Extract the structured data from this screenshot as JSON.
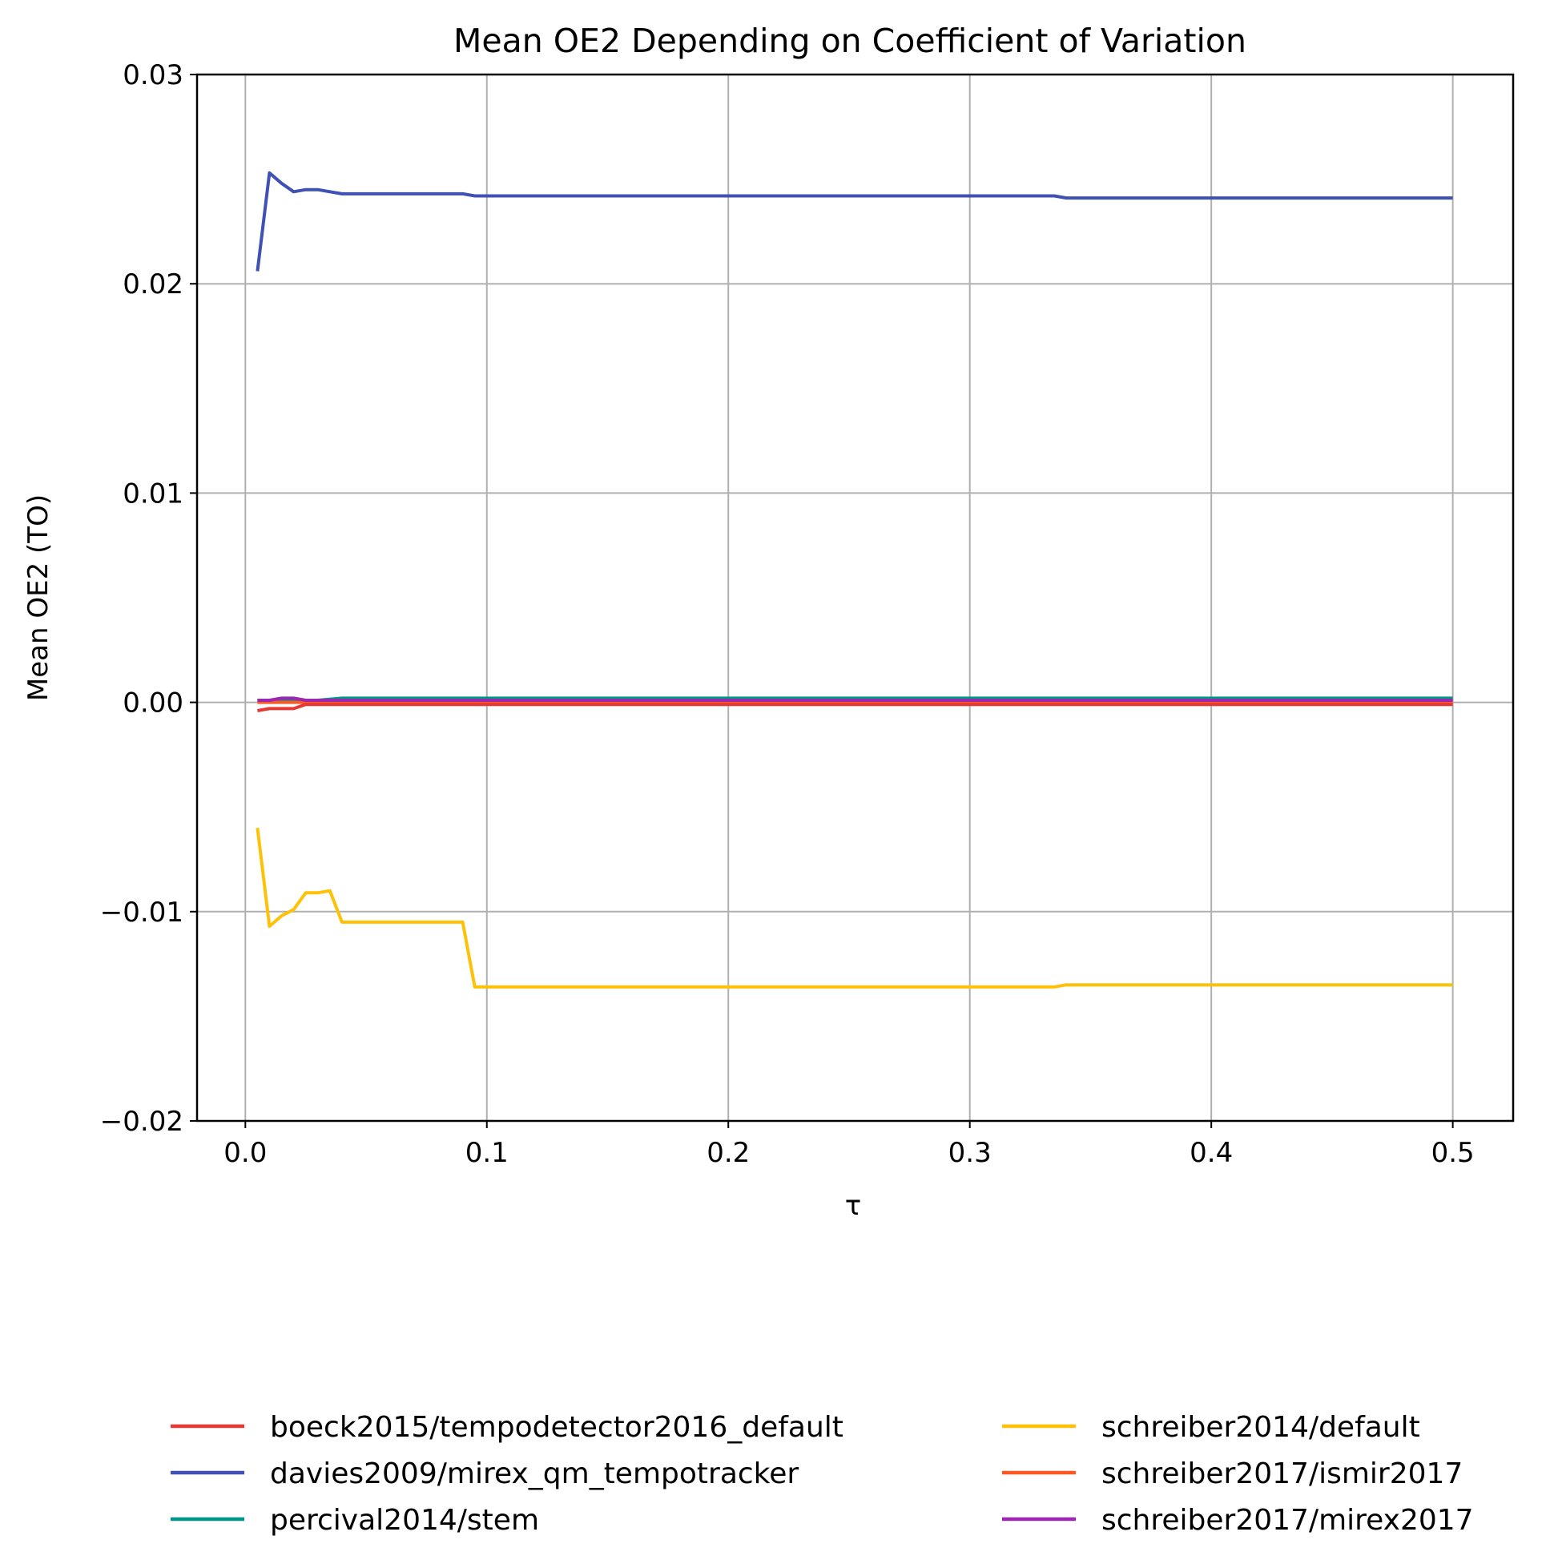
{
  "chart_data": {
    "type": "line",
    "title": "Mean OE2 Depending on Coefficient of Variation",
    "xlabel": "τ",
    "ylabel": "Mean OE2 (TO)",
    "xlim": [
      -0.02,
      0.525
    ],
    "ylim": [
      -0.02,
      0.03
    ],
    "x_ticks": [
      0.0,
      0.1,
      0.2,
      0.3,
      0.4,
      0.5
    ],
    "x_tick_labels": [
      "0.0",
      "0.1",
      "0.2",
      "0.3",
      "0.4",
      "0.5"
    ],
    "y_ticks": [
      -0.02,
      -0.01,
      0.0,
      0.01,
      0.02,
      0.03
    ],
    "y_tick_labels": [
      "−0.02",
      "−0.01",
      "0.00",
      "0.01",
      "0.02",
      "0.03"
    ],
    "grid": true,
    "legend_position": "bottom, below plot, two columns",
    "series": [
      {
        "name": "boeck2015/tempodetector2016_default",
        "color": "#e53935",
        "points": [
          [
            0.005,
            -0.0004
          ],
          [
            0.01,
            -0.0003
          ],
          [
            0.015,
            -0.0003
          ],
          [
            0.02,
            -0.0003
          ],
          [
            0.025,
            -0.0001
          ],
          [
            0.03,
            -0.0001
          ],
          [
            0.04,
            -0.0001
          ],
          [
            0.1,
            -0.0001
          ],
          [
            0.2,
            -0.0001
          ],
          [
            0.3,
            -0.0001
          ],
          [
            0.335,
            -0.0001
          ],
          [
            0.34,
            -0.0001
          ],
          [
            0.5,
            -0.0001
          ]
        ]
      },
      {
        "name": "davies2009/mirex_qm_tempotracker",
        "color": "#3f51b5",
        "points": [
          [
            0.005,
            0.0206
          ],
          [
            0.01,
            0.0253
          ],
          [
            0.015,
            0.0248
          ],
          [
            0.02,
            0.0244
          ],
          [
            0.025,
            0.0245
          ],
          [
            0.03,
            0.0245
          ],
          [
            0.035,
            0.0244
          ],
          [
            0.04,
            0.0243
          ],
          [
            0.09,
            0.0243
          ],
          [
            0.095,
            0.0242
          ],
          [
            0.2,
            0.0242
          ],
          [
            0.3,
            0.0242
          ],
          [
            0.335,
            0.0242
          ],
          [
            0.34,
            0.0241
          ],
          [
            0.5,
            0.0241
          ]
        ]
      },
      {
        "name": "percival2014/stem",
        "color": "#009688",
        "points": [
          [
            0.005,
            0.0001
          ],
          [
            0.01,
            0.0001
          ],
          [
            0.02,
            0.0001
          ],
          [
            0.03,
            0.0001
          ],
          [
            0.04,
            0.0002
          ],
          [
            0.09,
            0.0002
          ],
          [
            0.1,
            0.0002
          ],
          [
            0.2,
            0.0002
          ],
          [
            0.3,
            0.0002
          ],
          [
            0.4,
            0.0002
          ],
          [
            0.5,
            0.0002
          ]
        ]
      },
      {
        "name": "schreiber2014/default",
        "color": "#ffc107",
        "points": [
          [
            0.005,
            -0.006
          ],
          [
            0.01,
            -0.0107
          ],
          [
            0.015,
            -0.0102
          ],
          [
            0.02,
            -0.0099
          ],
          [
            0.025,
            -0.0091
          ],
          [
            0.03,
            -0.0091
          ],
          [
            0.035,
            -0.009
          ],
          [
            0.04,
            -0.0105
          ],
          [
            0.09,
            -0.0105
          ],
          [
            0.095,
            -0.0136
          ],
          [
            0.2,
            -0.0136
          ],
          [
            0.3,
            -0.0136
          ],
          [
            0.335,
            -0.0136
          ],
          [
            0.34,
            -0.0135
          ],
          [
            0.5,
            -0.0135
          ]
        ]
      },
      {
        "name": "schreiber2017/ismir2017",
        "color": "#ff5722",
        "points": [
          [
            0.005,
            0.0
          ],
          [
            0.02,
            0.0
          ],
          [
            0.04,
            0.0
          ],
          [
            0.1,
            0.0
          ],
          [
            0.2,
            0.0
          ],
          [
            0.3,
            0.0
          ],
          [
            0.4,
            0.0
          ],
          [
            0.5,
            0.0
          ]
        ]
      },
      {
        "name": "schreiber2017/mirex2017",
        "color": "#9c27b0",
        "points": [
          [
            0.005,
            0.0001
          ],
          [
            0.01,
            0.0001
          ],
          [
            0.015,
            0.0002
          ],
          [
            0.02,
            0.0002
          ],
          [
            0.025,
            0.0001
          ],
          [
            0.03,
            0.0001
          ],
          [
            0.04,
            0.0001
          ],
          [
            0.1,
            0.0001
          ],
          [
            0.2,
            0.0001
          ],
          [
            0.3,
            0.0001
          ],
          [
            0.4,
            0.0001
          ],
          [
            0.5,
            0.0001
          ]
        ]
      }
    ]
  }
}
